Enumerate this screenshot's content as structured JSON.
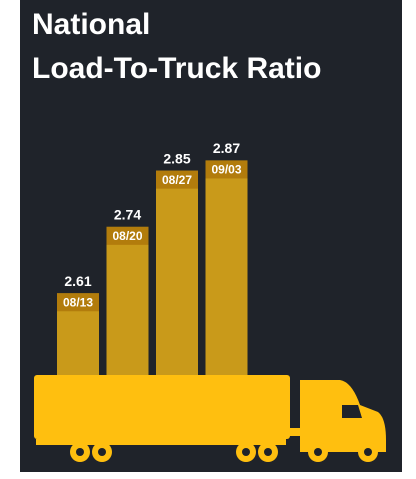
{
  "chart_data": {
    "type": "bar",
    "title_lines": [
      "National",
      "Load-To-Truck Ratio"
    ],
    "categories": [
      "08/13",
      "08/20",
      "08/27",
      "09/03"
    ],
    "values": [
      2.61,
      2.74,
      2.85,
      2.87
    ],
    "color": "#c99a1a",
    "label_box_color": "#b27c0c",
    "ylim": [
      2.45,
      2.91
    ]
  }
}
